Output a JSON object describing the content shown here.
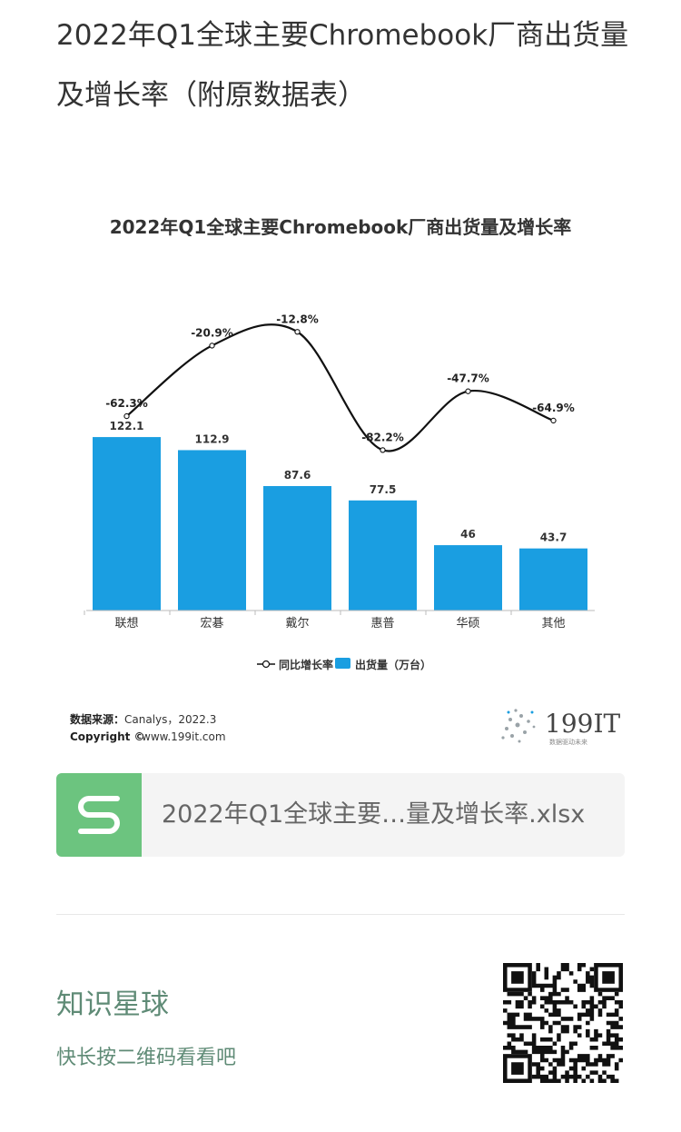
{
  "article": {
    "title": "2022年Q1全球主要Chromebook厂商出货量及增长率（附原数据表）"
  },
  "chart_data": {
    "type": "bar",
    "title": "2022年Q1全球主要Chromebook厂商出货量及增长率",
    "categories": [
      "联想",
      "宏碁",
      "戴尔",
      "惠普",
      "华硕",
      "其他"
    ],
    "series": [
      {
        "name": "出货量（万台）",
        "type": "bar",
        "values": [
          122.1,
          112.9,
          87.6,
          77.5,
          46,
          43.7
        ],
        "labels": [
          "122.1",
          "112.9",
          "87.6",
          "77.5",
          "46",
          "43.7"
        ],
        "color": "#1a9ee1"
      },
      {
        "name": "同比增长率",
        "type": "line",
        "values": [
          -62.3,
          -20.9,
          -12.8,
          -82.2,
          -47.7,
          -64.9
        ],
        "labels": [
          "-62.3%",
          "-20.9%",
          "-12.8%",
          "-82.2%",
          "-47.7%",
          "-64.9%"
        ],
        "color": "#111111"
      }
    ],
    "bar_ylim": [
      0,
      140
    ],
    "line_ylim": [
      -90,
      -10
    ],
    "legend_position": "bottom",
    "grid": false,
    "source_label": "数据来源：",
    "source_value": "Canalys，2022.3",
    "copyright_label": "Copyright ©",
    "copyright_value": "www.199it.com",
    "logo_text": "199IT",
    "logo_tagline": "数据驱动未来"
  },
  "attachment": {
    "filename": "2022年Q1全球主要…量及增长率.xlsx",
    "icon": "spreadsheet-s-icon"
  },
  "footer": {
    "title": "知识星球",
    "subtitle": "快长按二维码看看吧",
    "qr": "qr-code-icon"
  },
  "colors": {
    "accent_green": "#6cc47f",
    "footer_text": "#5f8b76",
    "bar_blue": "#1a9ee1"
  }
}
